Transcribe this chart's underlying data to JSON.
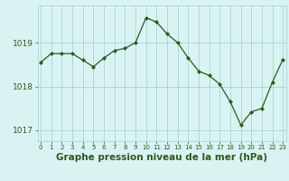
{
  "x": [
    0,
    1,
    2,
    3,
    4,
    5,
    6,
    7,
    8,
    9,
    10,
    11,
    12,
    13,
    14,
    15,
    16,
    17,
    18,
    19,
    20,
    21,
    22,
    23
  ],
  "y": [
    1018.55,
    1018.75,
    1018.75,
    1018.75,
    1018.6,
    1018.45,
    1018.65,
    1018.82,
    1018.87,
    1019.0,
    1019.57,
    1019.47,
    1019.2,
    1019.0,
    1018.65,
    1018.35,
    1018.25,
    1018.05,
    1017.65,
    1017.12,
    1017.42,
    1017.5,
    1018.1,
    1018.62
  ],
  "line_color": "#2d5a1b",
  "marker": "D",
  "marker_size": 2.2,
  "background_color": "#d9f3f3",
  "grid_color": "#aad4d4",
  "title": "Graphe pression niveau de la mer (hPa)",
  "title_fontsize": 7.5,
  "ytick_fontsize": 6.5,
  "xtick_fontsize": 5.0,
  "yticks": [
    1017,
    1018,
    1019
  ],
  "ylim": [
    1016.75,
    1019.85
  ],
  "xlim": [
    -0.3,
    23.3
  ]
}
